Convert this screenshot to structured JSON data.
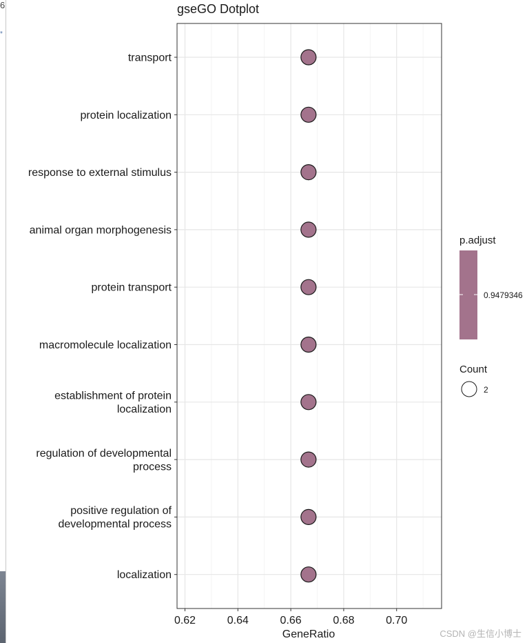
{
  "window_fragments": {
    "top_char": "6",
    "side_char": "*"
  },
  "chart_data": {
    "type": "scatter",
    "title": "gseGO Dotplot",
    "xlabel": "GeneRatio",
    "ylabel": "",
    "xlim": [
      0.617,
      0.717
    ],
    "x_ticks": [
      "0.62",
      "0.64",
      "0.66",
      "0.68",
      "0.70"
    ],
    "x_tick_values": [
      0.62,
      0.64,
      0.66,
      0.68,
      0.7
    ],
    "grid": true,
    "categories": [
      "transport",
      "protein localization",
      "response to external stimulus",
      "animal organ morphogenesis",
      "protein transport",
      "macromolecule localization",
      "establishment of protein\nlocalization",
      "regulation of developmental\nprocess",
      "positive regulation of\ndevelopmental process",
      "localization"
    ],
    "x": [
      0.6667,
      0.6667,
      0.6667,
      0.6667,
      0.6667,
      0.6667,
      0.6667,
      0.6667,
      0.6667,
      0.6667
    ],
    "count": [
      2,
      2,
      2,
      2,
      2,
      2,
      2,
      2,
      2,
      2
    ],
    "p_adjust": [
      0.9479346,
      0.9479346,
      0.9479346,
      0.9479346,
      0.9479346,
      0.9479346,
      0.9479346,
      0.9479346,
      0.9479346,
      0.9479346
    ],
    "point_color": "#a3738c",
    "legend": {
      "placement": "right",
      "color_title": "p.adjust",
      "color_label": "0.9479346",
      "size_title": "Count",
      "size_label": "2"
    }
  },
  "watermark": "CSDN @生信小博士"
}
